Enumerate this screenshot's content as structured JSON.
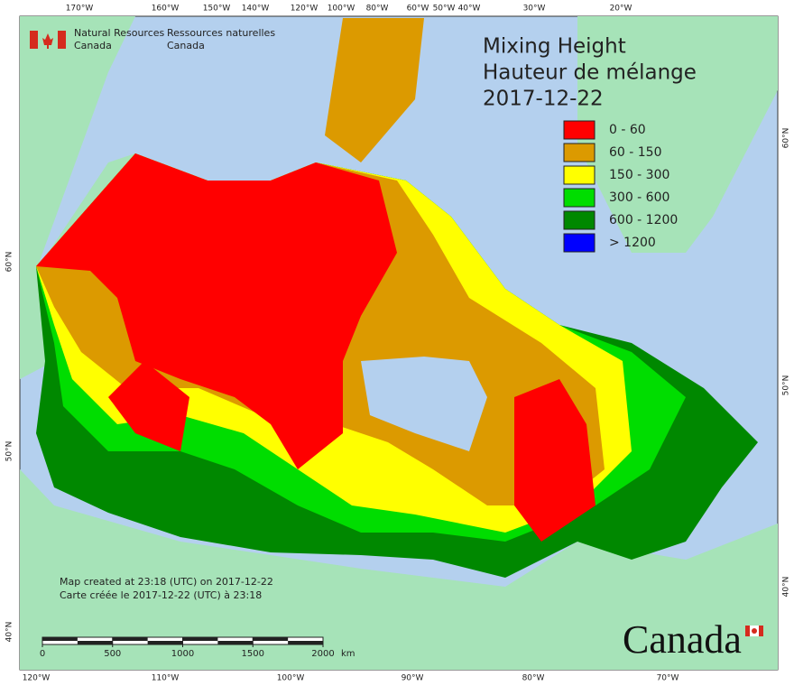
{
  "header": {
    "en": [
      "Natural Resources",
      "Canada"
    ],
    "fr": [
      "Ressources naturelles",
      "Canada"
    ]
  },
  "title": [
    "Mixing Height",
    "Hauteur de mélange",
    "2017-12-22"
  ],
  "legend": [
    {
      "label": "0 - 60",
      "color": "#ff0000"
    },
    {
      "label": "60 - 150",
      "color": "#dc9a00"
    },
    {
      "label": "150 - 300",
      "color": "#ffff00"
    },
    {
      "label": "300 - 600",
      "color": "#00dd00"
    },
    {
      "label": "600 - 1200",
      "color": "#008800"
    },
    {
      "label": "> 1200",
      "color": "#0000ff"
    }
  ],
  "graticule": {
    "top": [
      "170°W",
      "160°W",
      "150°W",
      "140°W",
      "120°W",
      "100°W",
      "80°W",
      "60°W",
      "50°W",
      "40°W",
      "30°W",
      "20°W"
    ],
    "bottom": [
      "120°W",
      "110°W",
      "100°W",
      "90°W",
      "80°W",
      "70°W"
    ],
    "left": [
      "60°N",
      "50°N",
      "40°N"
    ],
    "right": [
      "60°N",
      "50°N",
      "40°N"
    ]
  },
  "footer": [
    "Map created at 23:18 (UTC) on 2017-12-22",
    "Carte créée le 2017-12-22 (UTC) à 23:18"
  ],
  "scale": {
    "ticks": [
      0,
      500,
      1000,
      1500,
      2000
    ],
    "unit": "km"
  },
  "wordmark": "Canada"
}
